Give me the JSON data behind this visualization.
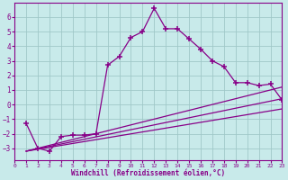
{
  "background_color": "#c8eaea",
  "grid_color": "#a0c8c8",
  "line_color": "#880088",
  "marker_color": "#880088",
  "xlabel": "Windchill (Refroidissement éolien,°C)",
  "xlim": [
    0,
    23
  ],
  "ylim": [
    -3.8,
    7.0
  ],
  "yticks": [
    -3,
    -2,
    -1,
    0,
    1,
    2,
    3,
    4,
    5,
    6
  ],
  "xticks": [
    0,
    1,
    2,
    3,
    4,
    5,
    6,
    7,
    8,
    9,
    10,
    11,
    12,
    13,
    14,
    15,
    16,
    17,
    18,
    19,
    20,
    21,
    22,
    23
  ],
  "line1_x": [
    1,
    2,
    3,
    4,
    5,
    6,
    7,
    8,
    9,
    10,
    11,
    12,
    13,
    14,
    15,
    16,
    17,
    18,
    19,
    20,
    21,
    22,
    23
  ],
  "line1_y": [
    -1.3,
    -3.0,
    -3.2,
    -2.2,
    -2.1,
    -2.1,
    -2.0,
    2.7,
    3.3,
    4.6,
    5.0,
    6.6,
    5.2,
    5.2,
    4.5,
    3.8,
    3.0,
    2.6,
    1.5,
    1.5,
    1.3,
    1.4,
    0.3
  ],
  "line2_x": [
    1,
    23
  ],
  "line2_y": [
    -3.2,
    1.2
  ],
  "line3_x": [
    1,
    23
  ],
  "line3_y": [
    -3.2,
    0.4
  ],
  "line4_x": [
    1,
    23
  ],
  "line4_y": [
    -3.2,
    -0.3
  ]
}
